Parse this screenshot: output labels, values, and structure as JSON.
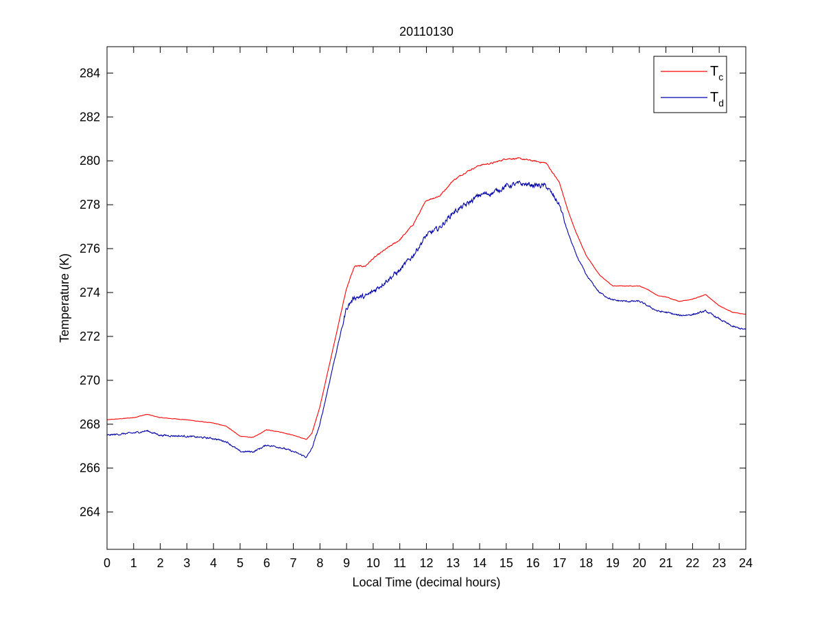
{
  "chart_data": {
    "type": "line",
    "title": "20110130",
    "xlabel": "Local Time (decimal hours)",
    "ylabel": "Temperature (K)",
    "xlim": [
      0,
      24
    ],
    "ylim": [
      262.3,
      285.2
    ],
    "xticks": [
      0,
      1,
      2,
      3,
      4,
      5,
      6,
      7,
      8,
      9,
      10,
      11,
      12,
      13,
      14,
      15,
      16,
      17,
      18,
      19,
      20,
      21,
      22,
      23,
      24
    ],
    "yticks": [
      264,
      266,
      268,
      270,
      272,
      274,
      276,
      278,
      280,
      282,
      284
    ],
    "grid": false,
    "legend_position": "top-right",
    "series": [
      {
        "name": "Tc",
        "name_main": "T",
        "name_sub": "c",
        "color": "#ff0000",
        "noise": 0.05,
        "x": [
          0,
          0.5,
          1.0,
          1.5,
          2.0,
          3.0,
          4.0,
          4.5,
          5.0,
          5.5,
          6.0,
          6.5,
          7.0,
          7.5,
          7.7,
          8.0,
          8.5,
          9.0,
          9.3,
          9.7,
          10.0,
          10.5,
          11.0,
          11.5,
          12.0,
          12.5,
          13.0,
          13.5,
          14.0,
          14.5,
          15.0,
          15.5,
          16.0,
          16.5,
          17.0,
          17.3,
          17.6,
          18.0,
          18.5,
          19.0,
          19.5,
          20.0,
          20.3,
          20.7,
          21.0,
          21.5,
          22.0,
          22.5,
          23.0,
          23.5,
          24.0
        ],
        "y": [
          268.2,
          268.25,
          268.3,
          268.45,
          268.3,
          268.2,
          268.05,
          267.9,
          267.45,
          267.4,
          267.75,
          267.65,
          267.5,
          267.3,
          267.6,
          268.8,
          271.5,
          274.2,
          275.2,
          275.2,
          275.55,
          276.0,
          276.4,
          277.1,
          278.2,
          278.4,
          279.1,
          279.5,
          279.8,
          279.9,
          280.1,
          280.1,
          280.0,
          279.9,
          279.0,
          277.8,
          276.8,
          275.7,
          274.8,
          274.3,
          274.3,
          274.3,
          274.15,
          273.85,
          273.8,
          273.6,
          273.7,
          273.9,
          273.4,
          273.1,
          273.0
        ]
      },
      {
        "name": "Td",
        "name_main": "T",
        "name_sub": "d",
        "color": "#0000aa",
        "noise": 0.18,
        "x": [
          0,
          0.5,
          1.0,
          1.5,
          2.0,
          3.0,
          4.0,
          4.5,
          5.0,
          5.5,
          6.0,
          6.5,
          7.0,
          7.5,
          7.7,
          8.0,
          8.5,
          9.0,
          9.3,
          9.7,
          10.0,
          10.5,
          11.0,
          11.5,
          12.0,
          12.5,
          13.0,
          13.5,
          14.0,
          14.5,
          15.0,
          15.5,
          16.0,
          16.5,
          17.0,
          17.3,
          17.6,
          18.0,
          18.5,
          19.0,
          19.5,
          20.0,
          20.3,
          20.7,
          21.0,
          21.5,
          22.0,
          22.5,
          23.0,
          23.5,
          24.0
        ],
        "y": [
          267.5,
          267.55,
          267.6,
          267.7,
          267.5,
          267.45,
          267.35,
          267.2,
          266.75,
          266.75,
          267.05,
          266.95,
          266.75,
          266.5,
          266.9,
          268.0,
          270.7,
          273.3,
          273.8,
          273.8,
          274.05,
          274.55,
          275.0,
          275.7,
          276.6,
          276.95,
          277.65,
          278.0,
          278.45,
          278.55,
          278.85,
          278.95,
          278.9,
          278.85,
          278.0,
          276.8,
          275.8,
          274.8,
          274.0,
          273.65,
          273.6,
          273.6,
          273.4,
          273.15,
          273.1,
          272.95,
          273.0,
          273.15,
          272.8,
          272.45,
          272.3
        ]
      }
    ]
  }
}
